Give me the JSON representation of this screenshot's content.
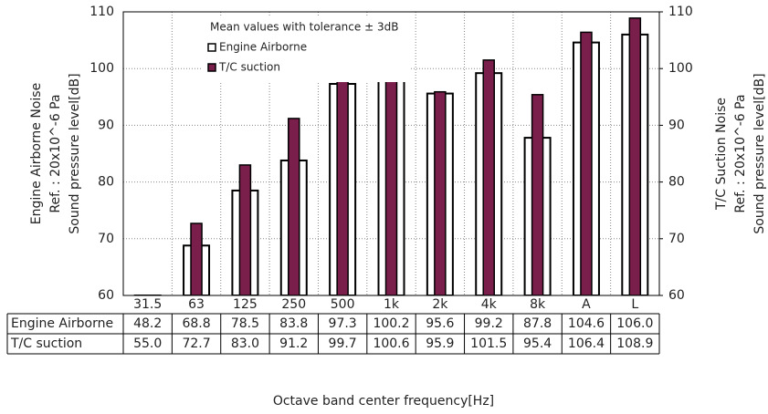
{
  "chart_data": {
    "type": "bar",
    "legend_title": "Mean values with tolerance ± 3dB",
    "x_label": "Octave band center frequency[Hz]",
    "y_label": [
      "Engine Airborne Noise",
      "Ref. : 20x10^-6 Pa",
      "Sound pressure level[dB]"
    ],
    "y2_label": [
      "T/C Suction Noise",
      "Ref. : 20x10^-6 Pa",
      "Sound pressure level[dB]"
    ],
    "categories": [
      "31.5",
      "63",
      "125",
      "250",
      "500",
      "1k",
      "2k",
      "4k",
      "8k",
      "A",
      "L"
    ],
    "series": [
      {
        "name": "Engine Airborne",
        "color": "#ffffff",
        "values": [
          48.2,
          68.8,
          78.5,
          83.8,
          97.3,
          100.2,
          95.6,
          99.2,
          87.8,
          104.6,
          106.0
        ],
        "value_labels": [
          "48.2",
          "68.8",
          "78.5",
          "83.8",
          "97.3",
          "100.2",
          "95.6",
          "99.2",
          "87.8",
          "104.6",
          "106.0"
        ]
      },
      {
        "name": "T/C suction",
        "color": "#7a1f4c",
        "axis": "y2",
        "values": [
          55.0,
          72.7,
          83.0,
          91.2,
          99.7,
          100.6,
          95.9,
          101.5,
          95.4,
          106.4,
          108.9
        ],
        "value_labels": [
          "55.0",
          "72.7",
          "83.0",
          "91.2",
          "99.7",
          "100.6",
          "95.9",
          "101.5",
          "95.4",
          "106.4",
          "108.9"
        ]
      }
    ],
    "ylim": [
      60,
      110
    ],
    "yticks": [
      60,
      70,
      80,
      90,
      100,
      110
    ],
    "y2lim": [
      60,
      110
    ],
    "y2ticks": [
      60,
      70,
      80,
      90,
      100,
      110
    ],
    "grid": true
  }
}
